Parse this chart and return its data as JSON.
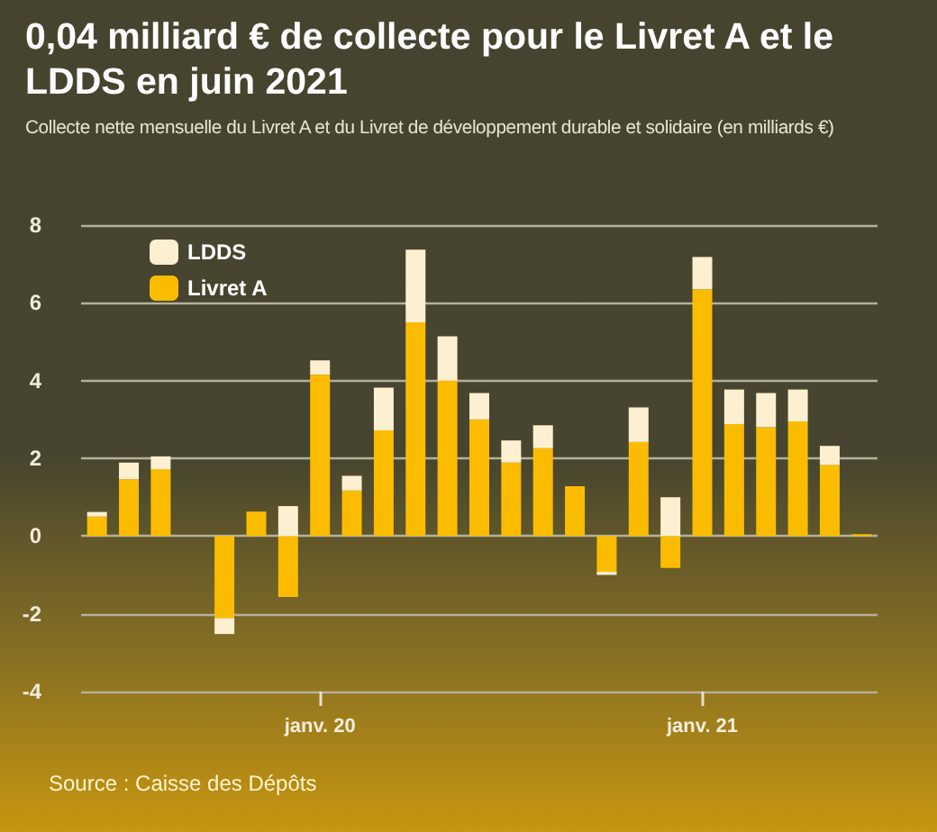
{
  "chart_data": {
    "type": "bar",
    "title": "0,04 milliard € de collecte pour le Livret A et le LDDS en juin 2021",
    "subtitle": "Collecte nette mensuelle du Livret A et du Livret de développement durable et solidaire (en milliards €)",
    "annotations": [
      "Source : Caisse des Dépôts"
    ],
    "categories": [
      null,
      null,
      null,
      null,
      null,
      null,
      null,
      "janv. 20",
      null,
      null,
      null,
      null,
      null,
      null,
      null,
      null,
      null,
      null,
      null,
      "janv. 21",
      null,
      null,
      null,
      null,
      null
    ],
    "stacked": true,
    "legend": "top left",
    "grid": "y",
    "ylim": [
      -4,
      8
    ],
    "yticks": [
      -4,
      -2,
      0,
      2,
      4,
      6,
      8
    ],
    "series": [
      {
        "name": "Livret A",
        "color": "#fbbc00",
        "values": [
          0.5,
          1.46,
          1.72,
          null,
          -2.11,
          0.63,
          -1.57,
          4.15,
          1.17,
          2.72,
          5.5,
          4.0,
          3.0,
          1.89,
          2.26,
          1.28,
          -0.92,
          2.42,
          -0.82,
          6.35,
          2.88,
          2.8,
          2.95,
          1.83,
          0.04
        ]
      },
      {
        "name": "LDDS",
        "color": "#fdf0d0",
        "values": [
          0.12,
          0.43,
          0.33,
          null,
          -0.41,
          null,
          0.77,
          0.37,
          0.38,
          1.1,
          1.87,
          1.14,
          0.68,
          0.57,
          0.59,
          null,
          -0.08,
          0.89,
          1.0,
          0.83,
          0.89,
          0.88,
          0.82,
          0.49,
          null
        ]
      }
    ]
  }
}
